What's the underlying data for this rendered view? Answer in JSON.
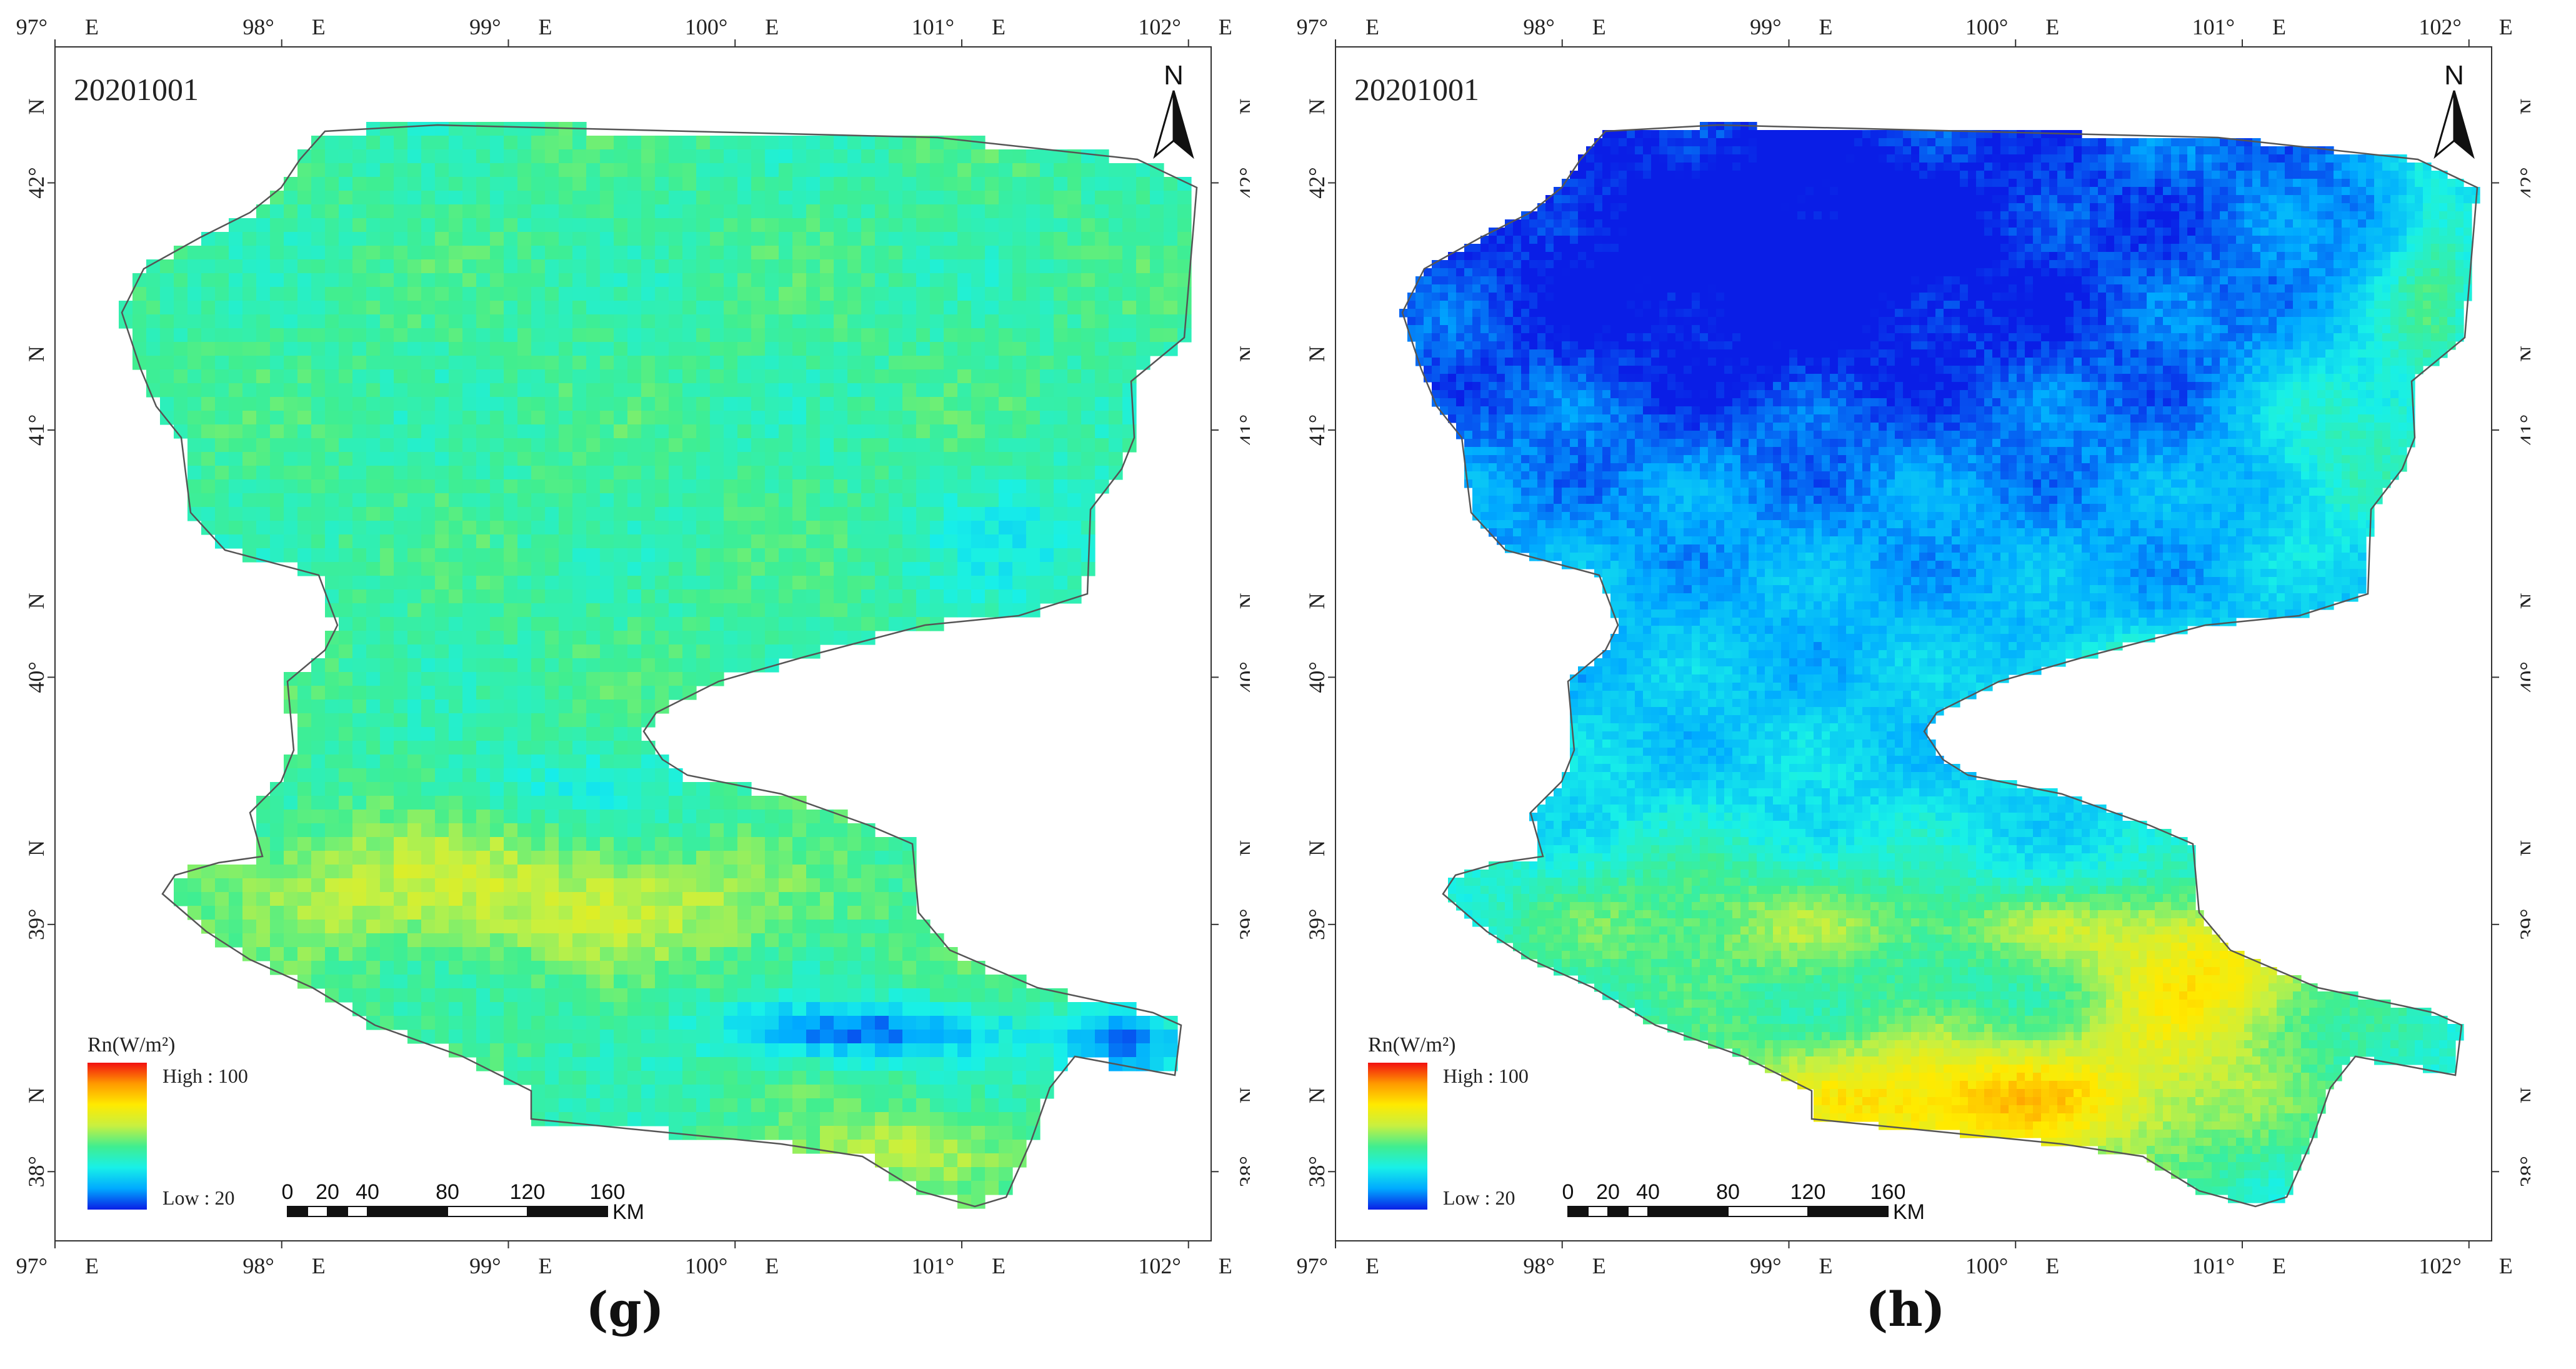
{
  "panels": [
    {
      "id": "g",
      "date": "20201001",
      "label": "(g)",
      "legend_title": "Rn(W/m²)",
      "legend_high": "High : 100",
      "legend_low": "Low : 20",
      "pattern": "coarse"
    },
    {
      "id": "h",
      "date": "20201001",
      "label": "(h)",
      "legend_title": "Rn(W/m²)",
      "legend_high": "High : 100",
      "legend_low": "Low : 20",
      "pattern": "fine"
    }
  ],
  "north_label": "N",
  "lon_ticks": [
    "97°",
    "98°",
    "99°",
    "100°",
    "101°",
    "102°"
  ],
  "lon_hemisphere": "E",
  "lat_ticks": [
    "42°",
    "41°",
    "40°",
    "39°",
    "38°"
  ],
  "lat_hemisphere": "N",
  "scale_bar": {
    "labels": [
      "0",
      "20",
      "40",
      "80",
      "120",
      "160"
    ],
    "unit": "KM"
  },
  "colors": {
    "ramp": [
      "#0a1ee6",
      "#00aaff",
      "#18f0e8",
      "#40ee90",
      "#c8f040",
      "#ffea00",
      "#ff9a00",
      "#f21010"
    ]
  }
}
